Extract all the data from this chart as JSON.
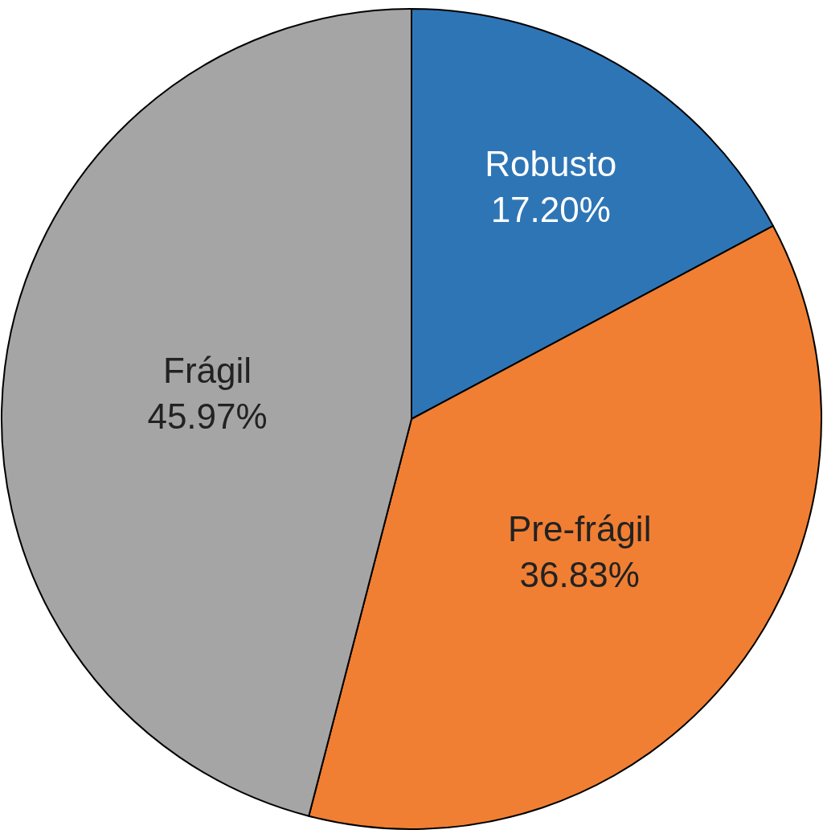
{
  "chart_data": {
    "type": "pie",
    "categories": [
      "Robusto",
      "Pre-frágil",
      "Frágil"
    ],
    "values": [
      17.2,
      36.83,
      45.97
    ],
    "value_labels": [
      "17.20%",
      "36.83%",
      "45.97%"
    ],
    "colors": [
      "#2e75b6",
      "#f07f33",
      "#a5a5a5"
    ],
    "legend": false
  }
}
